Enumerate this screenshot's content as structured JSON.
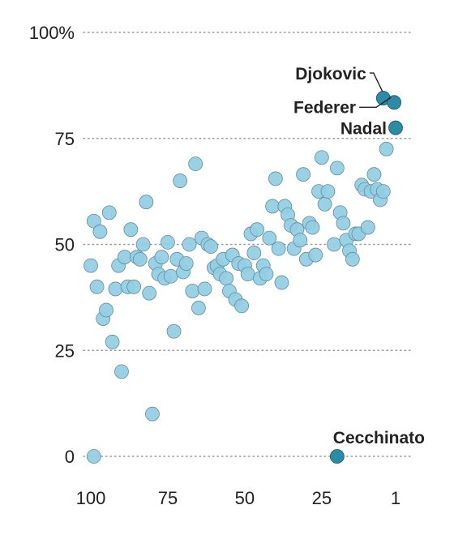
{
  "chart_data": {
    "type": "scatter",
    "title": "",
    "xlabel": "",
    "ylabel": "",
    "x_reversed": true,
    "xlim": [
      104,
      -1
    ],
    "ylim": [
      -8,
      103
    ],
    "x_ticks": [
      100,
      75,
      50,
      25,
      1
    ],
    "x_tick_labels": [
      "100",
      "75",
      "50",
      "25",
      "1"
    ],
    "y_ticks": [
      0,
      25,
      50,
      75,
      100
    ],
    "y_tick_labels": [
      "0",
      "25",
      "50",
      "75",
      "100%"
    ],
    "grid": "horizontal dotted",
    "colors": {
      "point": "#92cde3",
      "highlight": "#2d8ba6",
      "text": "#222222",
      "grid": "#9a9a9a"
    },
    "points": [
      {
        "x": 99,
        "y": 0
      },
      {
        "x": 100,
        "y": 45
      },
      {
        "x": 99,
        "y": 55.5
      },
      {
        "x": 98,
        "y": 40
      },
      {
        "x": 97,
        "y": 53
      },
      {
        "x": 96,
        "y": 32.5
      },
      {
        "x": 95,
        "y": 34.5
      },
      {
        "x": 94,
        "y": 57.5
      },
      {
        "x": 93,
        "y": 27
      },
      {
        "x": 92,
        "y": 39.5
      },
      {
        "x": 91,
        "y": 45
      },
      {
        "x": 90,
        "y": 20
      },
      {
        "x": 89,
        "y": 47
      },
      {
        "x": 88,
        "y": 40
      },
      {
        "x": 87,
        "y": 53.5
      },
      {
        "x": 86,
        "y": 40
      },
      {
        "x": 85,
        "y": 47
      },
      {
        "x": 84,
        "y": 46.5
      },
      {
        "x": 83,
        "y": 50
      },
      {
        "x": 82,
        "y": 60
      },
      {
        "x": 81,
        "y": 38.5
      },
      {
        "x": 80,
        "y": 10
      },
      {
        "x": 79,
        "y": 45.5
      },
      {
        "x": 78,
        "y": 43
      },
      {
        "x": 77,
        "y": 47
      },
      {
        "x": 76,
        "y": 42
      },
      {
        "x": 75,
        "y": 50.5
      },
      {
        "x": 74,
        "y": 42.5
      },
      {
        "x": 73,
        "y": 29.5
      },
      {
        "x": 72,
        "y": 46.5
      },
      {
        "x": 71,
        "y": 65
      },
      {
        "x": 70,
        "y": 43.5
      },
      {
        "x": 69,
        "y": 45.5
      },
      {
        "x": 68,
        "y": 50
      },
      {
        "x": 67,
        "y": 39
      },
      {
        "x": 66,
        "y": 69
      },
      {
        "x": 65,
        "y": 35
      },
      {
        "x": 64,
        "y": 51.5
      },
      {
        "x": 63,
        "y": 39.5
      },
      {
        "x": 62,
        "y": 50
      },
      {
        "x": 61,
        "y": 49.5
      },
      {
        "x": 60,
        "y": 44.5
      },
      {
        "x": 59,
        "y": 45
      },
      {
        "x": 58,
        "y": 43
      },
      {
        "x": 57,
        "y": 46.5
      },
      {
        "x": 56,
        "y": 42
      },
      {
        "x": 55,
        "y": 39
      },
      {
        "x": 54,
        "y": 47.5
      },
      {
        "x": 53,
        "y": 37
      },
      {
        "x": 52,
        "y": 45.5
      },
      {
        "x": 51,
        "y": 35.5
      },
      {
        "x": 50,
        "y": 45
      },
      {
        "x": 49,
        "y": 43
      },
      {
        "x": 48,
        "y": 52.5
      },
      {
        "x": 47,
        "y": 48
      },
      {
        "x": 46,
        "y": 53.5
      },
      {
        "x": 45,
        "y": 42
      },
      {
        "x": 44,
        "y": 45
      },
      {
        "x": 43,
        "y": 43
      },
      {
        "x": 42,
        "y": 51.5
      },
      {
        "x": 41,
        "y": 59
      },
      {
        "x": 40,
        "y": 65.5
      },
      {
        "x": 39,
        "y": 49
      },
      {
        "x": 38,
        "y": 41
      },
      {
        "x": 37,
        "y": 59
      },
      {
        "x": 36,
        "y": 57
      },
      {
        "x": 35,
        "y": 54.5
      },
      {
        "x": 34,
        "y": 49
      },
      {
        "x": 33,
        "y": 53.5
      },
      {
        "x": 32,
        "y": 51
      },
      {
        "x": 31,
        "y": 66.5
      },
      {
        "x": 30,
        "y": 46.5
      },
      {
        "x": 29,
        "y": 55
      },
      {
        "x": 28,
        "y": 54
      },
      {
        "x": 27,
        "y": 47.5
      },
      {
        "x": 26,
        "y": 62.5
      },
      {
        "x": 25,
        "y": 70.5
      },
      {
        "x": 24,
        "y": 59.5
      },
      {
        "x": 23,
        "y": 62.5
      },
      {
        "x": 21,
        "y": 50
      },
      {
        "x": 20,
        "y": 68
      },
      {
        "x": 19,
        "y": 57.5
      },
      {
        "x": 18,
        "y": 55
      },
      {
        "x": 17,
        "y": 51
      },
      {
        "x": 16,
        "y": 48.5
      },
      {
        "x": 15,
        "y": 46.5
      },
      {
        "x": 14,
        "y": 52.5
      },
      {
        "x": 13,
        "y": 52.5
      },
      {
        "x": 12,
        "y": 64
      },
      {
        "x": 11,
        "y": 63
      },
      {
        "x": 10,
        "y": 54
      },
      {
        "x": 9,
        "y": 62.5
      },
      {
        "x": 8,
        "y": 66.5
      },
      {
        "x": 7,
        "y": 63
      },
      {
        "x": 6,
        "y": 60.5
      },
      {
        "x": 5,
        "y": 62.5
      },
      {
        "x": 4,
        "y": 72.5
      }
    ],
    "highlights": [
      {
        "name": "Djokovic",
        "x": 5,
        "y": 84.5
      },
      {
        "name": "Federer",
        "x": 1.5,
        "y": 83.5
      },
      {
        "name": "Nadal",
        "x": 1,
        "y": 77.5
      },
      {
        "name": "Cecchinato",
        "x": 20,
        "y": 0
      }
    ]
  }
}
